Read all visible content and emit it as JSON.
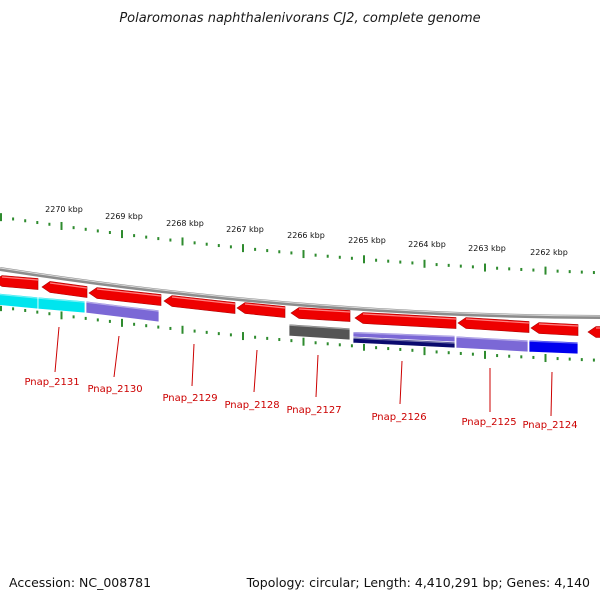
{
  "title": "Polaromonas naphthalenivorans CJ2, complete genome",
  "footer": {
    "accession": "Accession: NC_008781",
    "topology": "Topology: circular; Length: 4,410,291 bp; Genes: 4,140"
  },
  "ruler": {
    "labels": [
      "2270 kbp",
      "2269 kbp",
      "2268 kbp",
      "2267 kbp",
      "2266 kbp",
      "2265 kbp",
      "2264 kbp",
      "2263 kbp",
      "2262 kbp"
    ],
    "tick_color": "#2e8b2e"
  },
  "gene_labels": [
    "Pnap_2131",
    "Pnap_2130",
    "Pnap_2129",
    "Pnap_2128",
    "Pnap_2127",
    "Pnap_2126",
    "Pnap_2125",
    "Pnap_2124"
  ],
  "colors": {
    "backbone": "#8c8c8c",
    "reverse_gene": "#ee0000",
    "label": "#cc0000",
    "cyan_gene": "#00e5ee",
    "purple_gene": "#7b68d6",
    "gray_gene": "#555555",
    "navy_gene": "#0a0a6e",
    "blue_gene": "#0000ee"
  }
}
